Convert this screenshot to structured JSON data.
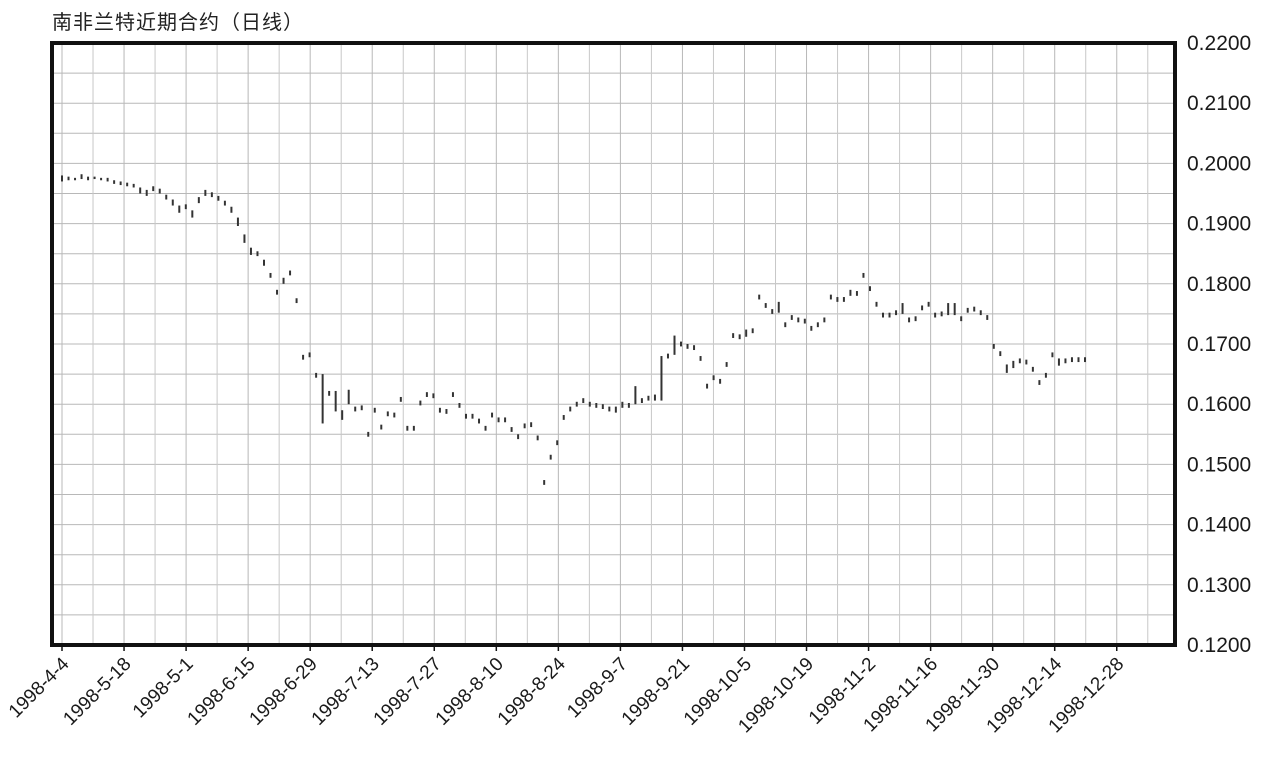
{
  "chart_data": {
    "type": "ohlc",
    "title": "南非兰特近期合约（日线）",
    "xlabel": "",
    "ylabel": "",
    "ylim": [
      0.12,
      0.22
    ],
    "yticks": [
      "0.2200",
      "0.2100",
      "0.2000",
      "0.1900",
      "0.1800",
      "0.1700",
      "0.1600",
      "0.1500",
      "0.1400",
      "0.1300",
      "0.1200"
    ],
    "xticks": [
      "1998-4-4",
      "1998-5-18",
      "1998-5-1",
      "1998-6-15",
      "1998-6-29",
      "1998-7-13",
      "1998-7-27",
      "1998-8-10",
      "1998-8-24",
      "1998-9-7",
      "1998-9-21",
      "1998-10-5",
      "1998-10-19",
      "1998-11-2",
      "1998-11-16",
      "1998-11-30",
      "1998-12-14",
      "1998-12-28"
    ],
    "grid": true,
    "bars": [
      [
        0,
        0.198,
        0.197
      ],
      [
        1,
        0.1978,
        0.1972
      ],
      [
        2,
        0.1976,
        0.1972
      ],
      [
        3,
        0.1982,
        0.1974
      ],
      [
        4,
        0.1978,
        0.1972
      ],
      [
        5,
        0.1978,
        0.1974
      ],
      [
        6,
        0.1976,
        0.1972
      ],
      [
        7,
        0.1976,
        0.197
      ],
      [
        8,
        0.1972,
        0.1966
      ],
      [
        9,
        0.197,
        0.1964
      ],
      [
        10,
        0.1968,
        0.1962
      ],
      [
        11,
        0.1966,
        0.196
      ],
      [
        12,
        0.196,
        0.195
      ],
      [
        13,
        0.1956,
        0.1946
      ],
      [
        14,
        0.1962,
        0.1954
      ],
      [
        15,
        0.1958,
        0.195
      ],
      [
        16,
        0.1948,
        0.194
      ],
      [
        17,
        0.194,
        0.193
      ],
      [
        18,
        0.193,
        0.1918
      ],
      [
        19,
        0.1932,
        0.1924
      ],
      [
        20,
        0.1922,
        0.191
      ],
      [
        21,
        0.1944,
        0.1934
      ],
      [
        22,
        0.1956,
        0.1946
      ],
      [
        23,
        0.1952,
        0.1944
      ],
      [
        24,
        0.1946,
        0.1938
      ],
      [
        25,
        0.1938,
        0.193
      ],
      [
        26,
        0.1928,
        0.1918
      ],
      [
        27,
        0.191,
        0.1896
      ],
      [
        28,
        0.1882,
        0.1868
      ],
      [
        29,
        0.186,
        0.1848
      ],
      [
        30,
        0.1854,
        0.1846
      ],
      [
        31,
        0.184,
        0.183
      ],
      [
        32,
        0.1818,
        0.181
      ],
      [
        33,
        0.179,
        0.1782
      ],
      [
        34,
        0.181,
        0.18
      ],
      [
        35,
        0.1822,
        0.1814
      ],
      [
        36,
        0.1776,
        0.1768
      ],
      [
        37,
        0.1682,
        0.1674
      ],
      [
        38,
        0.1686,
        0.1678
      ],
      [
        39,
        0.1652,
        0.1644
      ],
      [
        40,
        0.165,
        0.1568
      ],
      [
        41,
        0.1622,
        0.1614
      ],
      [
        42,
        0.1622,
        0.1588
      ],
      [
        43,
        0.159,
        0.1574
      ],
      [
        44,
        0.1624,
        0.16
      ],
      [
        45,
        0.1596,
        0.1588
      ],
      [
        46,
        0.1598,
        0.159
      ],
      [
        47,
        0.1554,
        0.1546
      ],
      [
        48,
        0.1594,
        0.1586
      ],
      [
        49,
        0.1566,
        0.1558
      ],
      [
        50,
        0.1588,
        0.158
      ],
      [
        51,
        0.1586,
        0.1578
      ],
      [
        52,
        0.1612,
        0.1604
      ],
      [
        53,
        0.1564,
        0.1556
      ],
      [
        54,
        0.1564,
        0.1556
      ],
      [
        55,
        0.1606,
        0.1598
      ],
      [
        56,
        0.162,
        0.1612
      ],
      [
        57,
        0.1618,
        0.161
      ],
      [
        58,
        0.1594,
        0.1586
      ],
      [
        59,
        0.1592,
        0.1584
      ],
      [
        60,
        0.162,
        0.1612
      ],
      [
        61,
        0.1602,
        0.1594
      ],
      [
        62,
        0.1584,
        0.1576
      ],
      [
        63,
        0.1584,
        0.1576
      ],
      [
        64,
        0.1576,
        0.1568
      ],
      [
        65,
        0.1564,
        0.1556
      ],
      [
        66,
        0.1586,
        0.1578
      ],
      [
        67,
        0.1578,
        0.157
      ],
      [
        68,
        0.1578,
        0.157
      ],
      [
        69,
        0.1562,
        0.1554
      ],
      [
        70,
        0.155,
        0.1542
      ],
      [
        71,
        0.1568,
        0.156
      ],
      [
        72,
        0.157,
        0.1562
      ],
      [
        73,
        0.1548,
        0.154
      ],
      [
        74,
        0.1474,
        0.1466
      ],
      [
        75,
        0.1516,
        0.1508
      ],
      [
        76,
        0.154,
        0.1532
      ],
      [
        77,
        0.1582,
        0.1574
      ],
      [
        78,
        0.1596,
        0.1588
      ],
      [
        79,
        0.1604,
        0.1596
      ],
      [
        80,
        0.161,
        0.1602
      ],
      [
        81,
        0.1604,
        0.1596
      ],
      [
        82,
        0.1602,
        0.1594
      ],
      [
        83,
        0.16,
        0.1592
      ],
      [
        84,
        0.1596,
        0.1588
      ],
      [
        85,
        0.1596,
        0.1586
      ],
      [
        86,
        0.1604,
        0.1594
      ],
      [
        87,
        0.1602,
        0.1594
      ],
      [
        88,
        0.163,
        0.16
      ],
      [
        89,
        0.161,
        0.1602
      ],
      [
        90,
        0.1614,
        0.1606
      ],
      [
        91,
        0.1616,
        0.1606
      ],
      [
        92,
        0.168,
        0.1606
      ],
      [
        93,
        0.1684,
        0.1676
      ],
      [
        94,
        0.1714,
        0.1682
      ],
      [
        95,
        0.1704,
        0.1696
      ],
      [
        96,
        0.17,
        0.1692
      ],
      [
        97,
        0.1698,
        0.169
      ],
      [
        98,
        0.168,
        0.1672
      ],
      [
        99,
        0.1634,
        0.1626
      ],
      [
        100,
        0.1648,
        0.164
      ],
      [
        101,
        0.1642,
        0.1634
      ],
      [
        102,
        0.167,
        0.1662
      ],
      [
        103,
        0.1718,
        0.171
      ],
      [
        104,
        0.1716,
        0.1708
      ],
      [
        105,
        0.1724,
        0.1712
      ],
      [
        106,
        0.1726,
        0.1718
      ],
      [
        107,
        0.1782,
        0.1774
      ],
      [
        108,
        0.1768,
        0.176
      ],
      [
        109,
        0.1758,
        0.175
      ],
      [
        110,
        0.177,
        0.1752
      ],
      [
        111,
        0.1736,
        0.1728
      ],
      [
        112,
        0.1748,
        0.174
      ],
      [
        113,
        0.1744,
        0.1736
      ],
      [
        114,
        0.1742,
        0.1734
      ],
      [
        115,
        0.173,
        0.1722
      ],
      [
        116,
        0.1736,
        0.1728
      ],
      [
        117,
        0.1744,
        0.1736
      ],
      [
        118,
        0.1782,
        0.1774
      ],
      [
        119,
        0.1778,
        0.177
      ],
      [
        120,
        0.1778,
        0.177
      ],
      [
        121,
        0.179,
        0.178
      ],
      [
        122,
        0.1788,
        0.178
      ],
      [
        123,
        0.1818,
        0.181
      ],
      [
        124,
        0.1796,
        0.1788
      ],
      [
        125,
        0.177,
        0.1762
      ],
      [
        126,
        0.1752,
        0.1744
      ],
      [
        127,
        0.1752,
        0.1744
      ],
      [
        128,
        0.1756,
        0.1748
      ],
      [
        129,
        0.1768,
        0.175
      ],
      [
        130,
        0.1744,
        0.1736
      ],
      [
        131,
        0.1746,
        0.1738
      ],
      [
        132,
        0.1764,
        0.1756
      ],
      [
        133,
        0.177,
        0.1762
      ],
      [
        134,
        0.1752,
        0.1744
      ],
      [
        135,
        0.1754,
        0.1746
      ],
      [
        136,
        0.1768,
        0.1748
      ],
      [
        137,
        0.1768,
        0.1748
      ],
      [
        138,
        0.1746,
        0.1738
      ],
      [
        139,
        0.176,
        0.1752
      ],
      [
        140,
        0.1762,
        0.1754
      ],
      [
        141,
        0.1756,
        0.1748
      ],
      [
        142,
        0.1748,
        0.174
      ],
      [
        143,
        0.17,
        0.1692
      ],
      [
        144,
        0.1688,
        0.168
      ],
      [
        145,
        0.1666,
        0.1652
      ],
      [
        146,
        0.1672,
        0.166
      ],
      [
        147,
        0.1676,
        0.1668
      ],
      [
        148,
        0.1674,
        0.1666
      ],
      [
        149,
        0.1662,
        0.1654
      ],
      [
        150,
        0.164,
        0.1632
      ],
      [
        151,
        0.1652,
        0.1644
      ],
      [
        152,
        0.1686,
        0.1678
      ],
      [
        153,
        0.1676,
        0.1664
      ],
      [
        154,
        0.1676,
        0.1668
      ],
      [
        155,
        0.1678,
        0.167
      ],
      [
        156,
        0.1678,
        0.167
      ],
      [
        157,
        0.1678,
        0.167
      ]
    ]
  }
}
